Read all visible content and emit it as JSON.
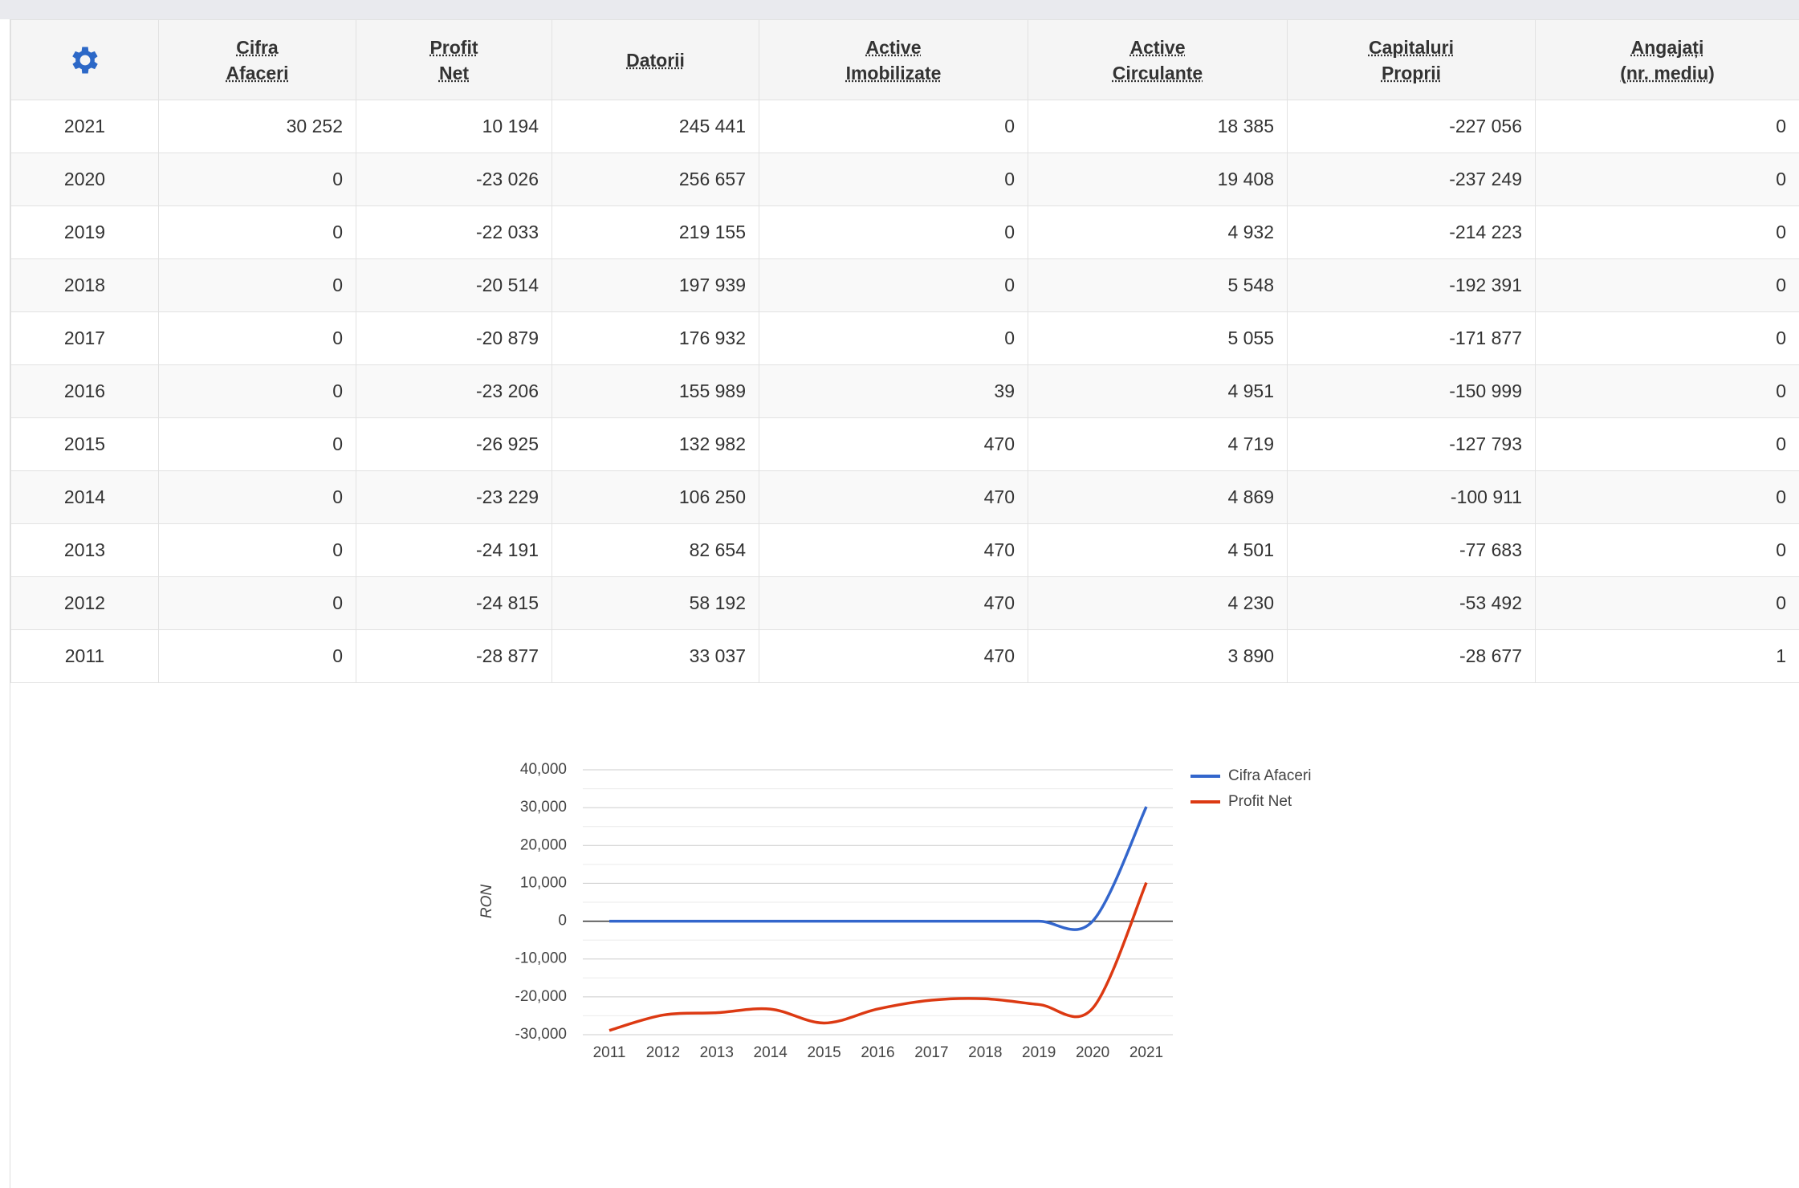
{
  "table": {
    "headers": [
      [
        "Cifra",
        "Afaceri"
      ],
      [
        "Profit",
        "Net"
      ],
      [
        "Datorii"
      ],
      [
        "Active",
        "Imobilizate"
      ],
      [
        "Active",
        "Circulante"
      ],
      [
        "Capitaluri",
        "Proprii"
      ],
      [
        "Angajați",
        "(nr. mediu)"
      ]
    ],
    "rows": [
      [
        "2021",
        "30 252",
        "10 194",
        "245 441",
        "0",
        "18 385",
        "-227 056",
        "0"
      ],
      [
        "2020",
        "0",
        "-23 026",
        "256 657",
        "0",
        "19 408",
        "-237 249",
        "0"
      ],
      [
        "2019",
        "0",
        "-22 033",
        "219 155",
        "0",
        "4 932",
        "-214 223",
        "0"
      ],
      [
        "2018",
        "0",
        "-20 514",
        "197 939",
        "0",
        "5 548",
        "-192 391",
        "0"
      ],
      [
        "2017",
        "0",
        "-20 879",
        "176 932",
        "0",
        "5 055",
        "-171 877",
        "0"
      ],
      [
        "2016",
        "0",
        "-23 206",
        "155 989",
        "39",
        "4 951",
        "-150 999",
        "0"
      ],
      [
        "2015",
        "0",
        "-26 925",
        "132 982",
        "470",
        "4 719",
        "-127 793",
        "0"
      ],
      [
        "2014",
        "0",
        "-23 229",
        "106 250",
        "470",
        "4 869",
        "-100 911",
        "0"
      ],
      [
        "2013",
        "0",
        "-24 191",
        "82 654",
        "470",
        "4 501",
        "-77 683",
        "0"
      ],
      [
        "2012",
        "0",
        "-24 815",
        "58 192",
        "470",
        "4 230",
        "-53 492",
        "0"
      ],
      [
        "2011",
        "0",
        "-28 877",
        "33 037",
        "470",
        "3 890",
        "-28 677",
        "1"
      ]
    ]
  },
  "chart_data": {
    "type": "line",
    "y_label": "RON",
    "categories": [
      "2011",
      "2012",
      "2013",
      "2014",
      "2015",
      "2016",
      "2017",
      "2018",
      "2019",
      "2020",
      "2021"
    ],
    "series": [
      {
        "name": "Cifra Afaceri",
        "color": "#3366cc",
        "values": [
          0,
          0,
          0,
          0,
          0,
          0,
          0,
          0,
          0,
          0,
          30252
        ]
      },
      {
        "name": "Profit Net",
        "color": "#dc3912",
        "values": [
          -28877,
          -24815,
          -24191,
          -23229,
          -26925,
          -23206,
          -20879,
          -20514,
          -22033,
          -23026,
          10194
        ]
      }
    ],
    "ylim": [
      -30000,
      40000
    ],
    "yticks": [
      {
        "value": -30000,
        "label": "-30,000"
      },
      {
        "value": -20000,
        "label": "-20,000"
      },
      {
        "value": -10000,
        "label": "-10,000"
      },
      0,
      {
        "value": 10000,
        "label": "10,000"
      },
      {
        "value": 20000,
        "label": "20,000"
      },
      {
        "value": 30000,
        "label": "30,000"
      },
      {
        "value": 40000,
        "label": "40,000"
      }
    ],
    "grid": true,
    "legend": "right",
    "curve": "smooth"
  }
}
